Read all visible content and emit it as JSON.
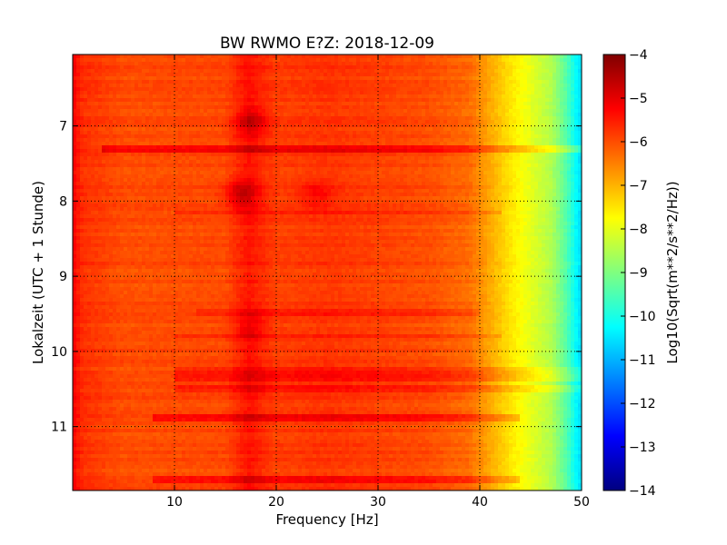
{
  "chart_data": {
    "type": "heatmap",
    "title": "BW RWMO E?Z: 2018-12-09",
    "xlabel": "Frequency [Hz]",
    "ylabel": "Lokalzeit (UTC + 1 Stunde)",
    "xlim": [
      0,
      50
    ],
    "ylim": [
      6.05,
      11.85
    ],
    "y_inverted": true,
    "grid": true,
    "x_ticks": [
      {
        "value": 10,
        "label": "10"
      },
      {
        "value": 20,
        "label": "20"
      },
      {
        "value": 30,
        "label": "30"
      },
      {
        "value": 40,
        "label": "40"
      },
      {
        "value": 50,
        "label": "50"
      }
    ],
    "y_ticks": [
      {
        "value": 7,
        "label": "7"
      },
      {
        "value": 8,
        "label": "8"
      },
      {
        "value": 9,
        "label": "9"
      },
      {
        "value": 10,
        "label": "10"
      },
      {
        "value": 11,
        "label": "11"
      }
    ],
    "colorbar": {
      "label": "Log10(Sqrt(m**2/s**2/Hz))",
      "colormap": "jet",
      "range": [
        -14,
        -4
      ],
      "ticks": [
        {
          "value": -4,
          "label": "−4"
        },
        {
          "value": -5,
          "label": "−5"
        },
        {
          "value": -6,
          "label": "−6"
        },
        {
          "value": -7,
          "label": "−7"
        },
        {
          "value": -8,
          "label": "−8"
        },
        {
          "value": -9,
          "label": "−9"
        },
        {
          "value": -10,
          "label": "−10"
        },
        {
          "value": -11,
          "label": "−11"
        },
        {
          "value": -12,
          "label": "−12"
        },
        {
          "value": -13,
          "label": "−13"
        },
        {
          "value": -14,
          "label": "−14"
        }
      ]
    },
    "spectrum_profile": [
      {
        "freq": 0,
        "level": -5.2
      },
      {
        "freq": 1,
        "level": -5.7
      },
      {
        "freq": 5,
        "level": -6.0
      },
      {
        "freq": 15,
        "level": -5.95
      },
      {
        "freq": 17.3,
        "level": -5.4
      },
      {
        "freq": 20,
        "level": -5.85
      },
      {
        "freq": 25,
        "level": -5.75
      },
      {
        "freq": 35,
        "level": -6.0
      },
      {
        "freq": 39,
        "level": -6.3
      },
      {
        "freq": 41,
        "level": -6.9
      },
      {
        "freq": 43,
        "level": -7.5
      },
      {
        "freq": 45,
        "level": -8.0
      },
      {
        "freq": 47,
        "level": -8.5
      },
      {
        "freq": 48.5,
        "level": -9.4
      },
      {
        "freq": 49.5,
        "level": -10.3
      },
      {
        "freq": 50,
        "level": -10.6
      }
    ],
    "time_bands": [
      {
        "time": 7.3,
        "f_from": 3,
        "f_to": 50,
        "delta": 0.7
      },
      {
        "time": 8.15,
        "f_from": 10,
        "f_to": 42,
        "delta": 0.35
      },
      {
        "time": 9.5,
        "f_from": 12,
        "f_to": 40,
        "delta": 0.3
      },
      {
        "time": 9.8,
        "f_from": 10,
        "f_to": 42,
        "delta": 0.3
      },
      {
        "time": 10.25,
        "f_from": 10,
        "f_to": 50,
        "delta": 0.45
      },
      {
        "time": 10.35,
        "f_from": 10,
        "f_to": 50,
        "delta": 0.5
      },
      {
        "time": 10.5,
        "f_from": 10,
        "f_to": 50,
        "delta": 0.45
      },
      {
        "time": 10.9,
        "f_from": 8,
        "f_to": 44,
        "delta": 0.6
      },
      {
        "time": 11.7,
        "f_from": 8,
        "f_to": 44,
        "delta": 0.55
      }
    ],
    "hot_spots": [
      {
        "time": 6.95,
        "freq": 17.5,
        "delta": 0.8
      },
      {
        "time": 7.9,
        "freq": 16.5,
        "delta": 0.9
      },
      {
        "time": 7.9,
        "freq": 24,
        "delta": 0.5
      },
      {
        "time": 9.7,
        "freq": 17.3,
        "delta": 0.4
      }
    ]
  }
}
